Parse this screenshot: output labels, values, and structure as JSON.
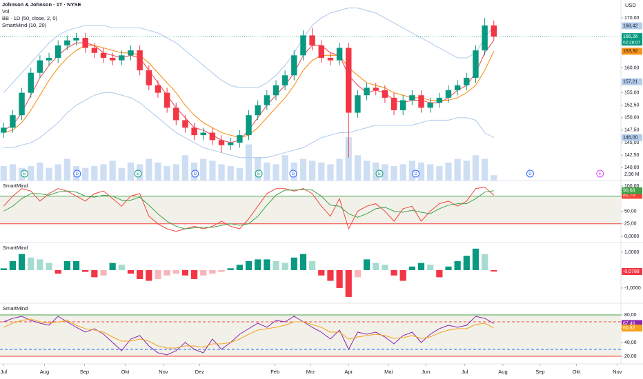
{
  "chart_data": [
    {
      "type": "candlestick",
      "title": "Johnson & Johnson · 1T · NYSE",
      "currency": "USD",
      "indicators": [
        "Vol",
        "BB · 1D (50, close, 2, 0)",
        "SmartMind (10, 20)"
      ],
      "x": [
        0,
        1,
        2,
        3,
        4,
        5,
        6,
        7,
        8,
        9,
        10,
        11,
        12,
        13,
        14,
        15,
        16,
        17,
        18,
        19,
        20,
        21,
        22,
        23,
        24,
        25,
        26,
        27,
        28,
        29,
        30,
        31,
        32,
        33,
        34,
        35,
        36,
        37,
        38,
        39,
        40,
        41,
        42,
        43,
        44,
        45,
        46,
        47,
        48,
        49,
        50,
        51,
        52,
        53,
        54
      ],
      "open": [
        147.0,
        148.0,
        150.5,
        155.0,
        159.0,
        161.5,
        162.0,
        164.5,
        165.5,
        166.0,
        164.0,
        163.0,
        162.0,
        161.5,
        162.5,
        163.5,
        159.5,
        156.5,
        155.0,
        152.0,
        149.5,
        148.0,
        146.5,
        147.0,
        145.5,
        144.5,
        145.0,
        146.5,
        150.5,
        152.5,
        154.5,
        156.5,
        158.5,
        162.5,
        166.5,
        164.5,
        162.0,
        161.5,
        164.0,
        151.0,
        154.5,
        156.0,
        155.5,
        154.0,
        151.5,
        153.5,
        154.5,
        152.0,
        153.0,
        154.0,
        155.5,
        156.5,
        158.0,
        163.5,
        168.5
      ],
      "high": [
        149.0,
        151.5,
        156.0,
        160.0,
        162.5,
        163.0,
        165.5,
        166.5,
        167.0,
        167.0,
        165.0,
        164.0,
        163.0,
        163.5,
        164.5,
        164.5,
        160.5,
        157.5,
        156.0,
        153.0,
        150.5,
        149.0,
        148.0,
        148.0,
        146.5,
        146.0,
        147.5,
        151.5,
        153.5,
        155.5,
        157.5,
        159.5,
        163.5,
        167.5,
        168.0,
        165.5,
        163.0,
        165.0,
        165.0,
        155.5,
        157.0,
        157.0,
        156.5,
        155.0,
        154.5,
        155.5,
        155.5,
        154.0,
        155.0,
        156.5,
        157.5,
        159.0,
        164.5,
        170.0,
        169.5
      ],
      "low": [
        146.0,
        147.0,
        149.5,
        154.0,
        158.0,
        160.5,
        161.0,
        163.5,
        164.5,
        163.0,
        162.0,
        161.0,
        160.5,
        160.5,
        161.5,
        158.5,
        155.5,
        154.0,
        151.0,
        148.5,
        147.0,
        145.5,
        145.5,
        144.5,
        143.0,
        143.5,
        144.0,
        145.5,
        149.5,
        151.5,
        153.5,
        155.5,
        157.5,
        161.5,
        163.5,
        161.0,
        160.5,
        160.5,
        142.0,
        150.0,
        153.5,
        154.5,
        153.0,
        150.5,
        150.5,
        152.5,
        151.0,
        151.0,
        152.0,
        153.0,
        154.5,
        155.5,
        157.0,
        162.5,
        165.5
      ],
      "close": [
        148.0,
        150.5,
        155.0,
        159.0,
        161.5,
        162.0,
        164.5,
        165.5,
        166.0,
        164.0,
        163.0,
        162.0,
        161.5,
        162.5,
        163.5,
        159.5,
        156.5,
        155.0,
        152.0,
        149.5,
        148.0,
        146.5,
        147.0,
        145.5,
        144.5,
        145.0,
        146.5,
        150.5,
        152.5,
        154.5,
        156.5,
        158.5,
        162.5,
        166.5,
        164.5,
        162.0,
        161.5,
        164.0,
        151.0,
        154.5,
        156.0,
        155.5,
        154.0,
        151.5,
        153.5,
        154.5,
        152.0,
        153.0,
        154.0,
        155.5,
        156.5,
        158.0,
        163.5,
        168.5,
        166.26
      ],
      "up_color": "#089981",
      "down_color": "#f23645",
      "series": [
        {
          "color": "#f0505c",
          "values": [
            147.5,
            148.5,
            151,
            154.5,
            158,
            160.5,
            162.5,
            164,
            165,
            165,
            164.5,
            163,
            162.5,
            162,
            162.5,
            162,
            159.5,
            157,
            154.5,
            152,
            150,
            148,
            147.5,
            146.5,
            145.5,
            145,
            145.5,
            147.5,
            150,
            152.5,
            154.5,
            156.5,
            159,
            162.5,
            164.5,
            164.5,
            163,
            162.5,
            158.5,
            156.5,
            155,
            155.5,
            155,
            153.5,
            153,
            153.5,
            153.5,
            153,
            153,
            154,
            155.5,
            156.5,
            159,
            163,
            165.5
          ]
        },
        {
          "color": "#f7931a",
          "values": [
            147,
            147.5,
            149,
            151.5,
            154.5,
            157.5,
            160,
            162,
            163.5,
            164.5,
            164.5,
            164,
            163.5,
            163,
            163,
            162.5,
            161,
            159,
            157,
            155,
            152.5,
            150.5,
            149,
            148,
            147,
            146.5,
            146,
            146.5,
            148,
            150,
            152,
            154,
            156.5,
            159.5,
            161.5,
            162.5,
            162.5,
            162.5,
            160,
            158.5,
            157,
            156.5,
            156,
            155,
            154.5,
            154,
            154,
            153.5,
            153.5,
            153.5,
            154,
            155,
            156.5,
            159.5,
            163.32
          ]
        },
        {
          "color": "#b3cdec",
          "values": [
            155,
            157,
            159,
            161,
            163,
            165,
            166.5,
            167.5,
            168,
            168.5,
            168.5,
            168.5,
            168,
            168,
            168,
            168,
            167.5,
            167,
            166,
            165,
            163.5,
            162,
            160.5,
            159,
            157.5,
            156.5,
            156,
            156,
            156,
            157,
            158.5,
            160.5,
            163,
            166,
            168.5,
            170,
            171,
            171.5,
            172,
            172,
            171.5,
            171,
            170,
            169,
            168,
            167,
            166,
            165,
            164,
            163,
            162,
            162,
            163,
            166,
            168.42
          ]
        },
        {
          "color": "#b3cdec",
          "values": [
            144,
            144,
            144.5,
            145,
            146,
            147.5,
            149,
            151,
            152.5,
            153.5,
            154.5,
            155,
            155,
            154.5,
            154,
            153,
            151.5,
            150,
            148.5,
            147,
            146,
            145,
            144,
            143.5,
            143,
            142.5,
            142,
            142,
            142,
            142,
            142.5,
            143,
            143.5,
            144,
            145,
            146,
            146.5,
            147,
            147,
            147.5,
            148,
            148.5,
            148.5,
            148.5,
            148.5,
            148.5,
            149,
            149.5,
            149.5,
            149.5,
            150,
            150,
            149.5,
            147,
            146.0
          ]
        }
      ],
      "volume": {
        "color": "#b9d0ee",
        "vlim": [
          0,
          100
        ],
        "values": [
          8,
          9,
          7,
          8,
          10,
          7,
          9,
          12,
          8,
          7,
          8,
          9,
          11,
          7,
          10,
          9,
          12,
          10,
          8,
          9,
          14,
          10,
          12,
          11,
          9,
          8,
          7,
          20,
          13,
          10,
          9,
          14,
          10,
          12,
          11,
          10,
          9,
          12,
          24,
          14,
          11,
          10,
          9,
          8,
          9,
          11,
          10,
          9,
          8,
          10,
          12,
          11,
          14,
          12,
          2.96
        ],
        "last_label": "2,96 M"
      },
      "price_labels": [
        {
          "value": 168.42,
          "label": "168,42",
          "color": "#b3cdec",
          "text_color": "#131722"
        },
        {
          "value": 166.26,
          "label": "166,26",
          "color": "#089981",
          "text_color": "#ffffff",
          "countdown": "02:28:07"
        },
        {
          "value": 163.32,
          "label": "163,32",
          "color": "#f7931a",
          "text_color": "#131722"
        },
        {
          "value": 157.21,
          "label": "157,21",
          "color": "#b3cdec",
          "text_color": "#131722"
        },
        {
          "value": 146.0,
          "label": "146,00",
          "color": "#b3cdec",
          "text_color": "#131722"
        }
      ],
      "events": [
        {
          "x": 2.3,
          "label": "E"
        },
        {
          "x": 8.1,
          "label": "D"
        },
        {
          "x": 14.8,
          "label": "E"
        },
        {
          "x": 21.1,
          "label": "D"
        },
        {
          "x": 28.1,
          "label": "E"
        },
        {
          "x": 31.9,
          "label": "D"
        },
        {
          "x": 41.4,
          "label": "E"
        },
        {
          "x": 45.4,
          "label": "D"
        },
        {
          "x": 58.0,
          "label": "D"
        },
        {
          "x": 65.7,
          "label": "E"
        }
      ],
      "xlim": [
        -0.4,
        68
      ],
      "xticks": [
        {
          "value": 0,
          "label": "Jul"
        },
        {
          "value": 4.5,
          "label": "Aug"
        },
        {
          "value": 8.9,
          "label": "Sep"
        },
        {
          "value": 13.4,
          "label": "Okt"
        },
        {
          "value": 17.6,
          "label": "Nov"
        },
        {
          "value": 21.6,
          "label": "Dez"
        },
        2025,
        {
          "value": 29.9,
          "label": "Feb"
        },
        {
          "value": 33.8,
          "label": "Mrz"
        },
        {
          "value": 38.0,
          "label": "Apr"
        },
        {
          "value": 42.4,
          "label": "Mai"
        },
        {
          "value": 46.5,
          "label": "Jun"
        },
        {
          "value": 50.8,
          "label": "Jul"
        },
        {
          "value": 55.0,
          "label": "Aug"
        },
        {
          "value": 59.1,
          "label": "Sep"
        },
        {
          "value": 63.1,
          "label": "Okt"
        },
        {
          "value": 67.6,
          "label": "Nov"
        }
      ],
      "ylim": [
        137.4,
        173.6
      ],
      "yticks": [
        {
          "value": 140,
          "label": "140,00"
        },
        {
          "value": 142.5,
          "label": "142,50"
        },
        {
          "value": 145,
          "label": "145,00"
        },
        {
          "value": 147.5,
          "label": "147,50"
        },
        {
          "value": 150,
          "label": "150,00"
        },
        {
          "value": 152.5,
          "label": "152,50"
        },
        {
          "value": 155,
          "label": "155,00"
        },
        {
          "value": 160,
          "label": "160,00"
        },
        {
          "value": 170,
          "label": "170,00"
        }
      ]
    },
    {
      "type": "line",
      "title": "SmartMind",
      "series": [
        {
          "color": "#f44336",
          "last_label": "81,70",
          "values": [
            60,
            80,
            95,
            90,
            70,
            85,
            95,
            90,
            80,
            70,
            85,
            90,
            75,
            60,
            80,
            85,
            40,
            25,
            15,
            10,
            15,
            20,
            15,
            20,
            30,
            20,
            15,
            35,
            60,
            85,
            95,
            95,
            90,
            95,
            85,
            60,
            40,
            75,
            15,
            50,
            60,
            65,
            50,
            30,
            55,
            60,
            30,
            50,
            65,
            70,
            60,
            70,
            95,
            98,
            81.7
          ]
        },
        {
          "color": "#43a047",
          "last_label": "90,68",
          "values": [
            50,
            60,
            75,
            85,
            85,
            82,
            88,
            90,
            88,
            80,
            78,
            82,
            80,
            72,
            72,
            78,
            62,
            45,
            30,
            20,
            15,
            17,
            18,
            18,
            22,
            25,
            22,
            25,
            40,
            62,
            82,
            92,
            92,
            93,
            92,
            80,
            62,
            60,
            45,
            38,
            45,
            55,
            58,
            50,
            48,
            52,
            48,
            45,
            55,
            62,
            65,
            65,
            75,
            88,
            90.68
          ]
        }
      ],
      "levels": [
        {
          "value": 80,
          "color": "#43a047",
          "dash": false
        },
        {
          "value": 25,
          "color": "#f44336",
          "dash": false
        }
      ],
      "band_color": "#f1f1ea",
      "ylim": [
        -12.3,
        111
      ],
      "yticks": [
        {
          "value": 100,
          "label": "100,00"
        },
        {
          "value": 50,
          "label": "50,00"
        },
        {
          "value": 25,
          "label": "25,00"
        },
        {
          "value": 0,
          "label": "0,0000"
        }
      ]
    },
    {
      "type": "column",
      "title": "SmartMind",
      "colors": {
        "up_strong": "#089981",
        "up_weak": "#a5dccf",
        "down_strong": "#f23645",
        "down_weak": "#f9b5ba"
      },
      "values": [
        0.1,
        0.5,
        0.9,
        0.7,
        0.6,
        0.4,
        -0.2,
        0.5,
        0.5,
        -0.1,
        -0.4,
        -0.3,
        0.4,
        0.3,
        -0.2,
        -0.5,
        -0.6,
        -0.5,
        -0.3,
        -0.2,
        -0.3,
        -0.5,
        -0.3,
        -0.2,
        -0.1,
        0.1,
        0.3,
        0.5,
        0.6,
        0.6,
        0.5,
        0.4,
        0.7,
        0.9,
        0.5,
        -0.3,
        -0.6,
        -1.0,
        -1.5,
        -0.4,
        0.6,
        0.4,
        0.3,
        -0.3,
        -0.6,
        0.2,
        0.4,
        0.3,
        -0.4,
        0.2,
        0.5,
        0.8,
        1.2,
        0.9,
        -0.0788
      ],
      "last_label": "-0,0788",
      "last_color": "#f23645",
      "ylim": [
        -1.85,
        1.54
      ],
      "yticks": [
        {
          "value": 1,
          "label": "1,0000"
        },
        {
          "value": -1,
          "label": "-1,0000"
        }
      ]
    },
    {
      "type": "line",
      "title": "SmartMind",
      "series": [
        {
          "color": "#8e24aa",
          "last_label": "67,46",
          "values": [
            70,
            75,
            78,
            72,
            68,
            65,
            78,
            70,
            62,
            55,
            60,
            52,
            40,
            28,
            45,
            50,
            35,
            25,
            22,
            28,
            40,
            30,
            25,
            45,
            30,
            40,
            52,
            60,
            68,
            62,
            72,
            70,
            78,
            70,
            62,
            55,
            45,
            58,
            30,
            55,
            52,
            55,
            48,
            38,
            50,
            55,
            40,
            52,
            60,
            65,
            62,
            65,
            78,
            75,
            67.46
          ]
        },
        {
          "color": "#f7a21b",
          "last_label": "60,82",
          "values": [
            62,
            68,
            72,
            74,
            70,
            68,
            70,
            72,
            65,
            60,
            58,
            55,
            48,
            42,
            42,
            45,
            42,
            35,
            32,
            32,
            35,
            35,
            33,
            38,
            38,
            40,
            45,
            52,
            58,
            60,
            62,
            65,
            70,
            70,
            66,
            62,
            55,
            55,
            45,
            48,
            50,
            52,
            50,
            46,
            47,
            50,
            46,
            48,
            54,
            58,
            60,
            60,
            66,
            68,
            60.82
          ]
        }
      ],
      "levels": [
        {
          "value": 80,
          "color": "#43a047",
          "dash": false
        },
        {
          "value": 70,
          "color": "#f44336",
          "dash": true
        },
        {
          "value": 30,
          "color": "#2962ff",
          "dash": true
        },
        {
          "value": 20,
          "color": "#f44336",
          "dash": false
        }
      ],
      "band_color": "#f1f1ea",
      "ylim": [
        9,
        97
      ],
      "yticks": [
        {
          "value": 80,
          "label": "80,00"
        },
        {
          "value": 60,
          "label": "60,00"
        },
        {
          "value": 40,
          "label": "40,00"
        },
        {
          "value": 20,
          "label": "20,00"
        }
      ]
    }
  ]
}
